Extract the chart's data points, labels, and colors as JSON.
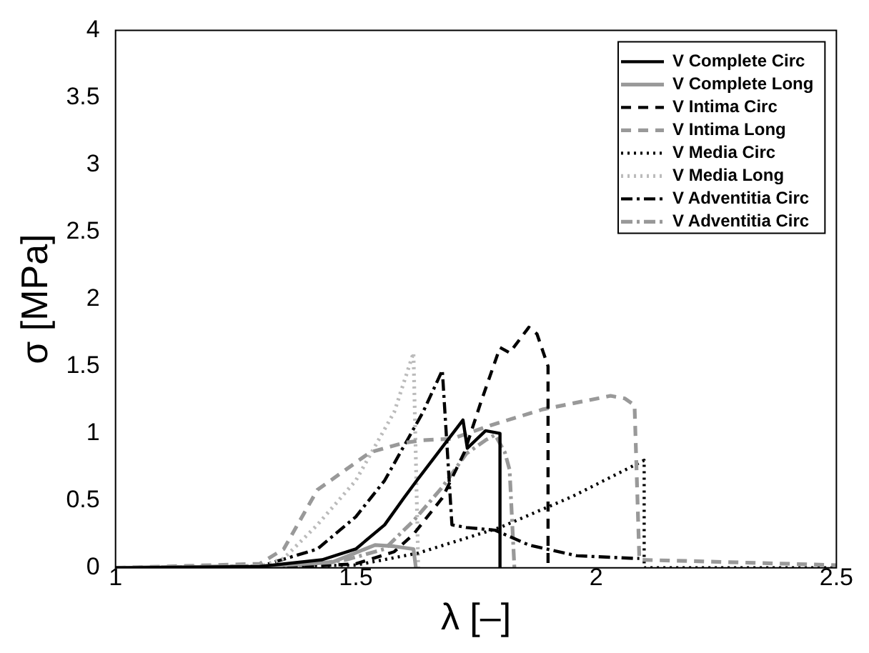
{
  "chart_data": {
    "type": "line",
    "xlabel": "λ [–]",
    "ylabel": "σ [MPa]",
    "xlim": [
      1,
      2.5
    ],
    "ylim": [
      0,
      4
    ],
    "xticks": [
      1,
      1.5,
      2,
      2.5
    ],
    "yticks": [
      0,
      0.5,
      1,
      1.5,
      2,
      2.5,
      3,
      3.5,
      4
    ],
    "grid": false,
    "legend": "top right",
    "marker": "none",
    "series": [
      {
        "name": "V Complete Circ",
        "color": "#000000",
        "line_style": "solid",
        "x": [
          1,
          1.3,
          1.43,
          1.5,
          1.56,
          1.6,
          1.627,
          1.723,
          1.732,
          1.77,
          1.786,
          1.8,
          1.8
        ],
        "values": [
          0,
          0.01,
          0.06,
          0.14,
          0.32,
          0.52,
          0.65,
          1.1,
          0.89,
          1.02,
          1.01,
          1.0,
          0
        ]
      },
      {
        "name": "V Complete Long",
        "color": "#999999",
        "line_style": "solid",
        "x": [
          1,
          1.3,
          1.45,
          1.54,
          1.58,
          1.62,
          1.625
        ],
        "values": [
          0,
          0.01,
          0.04,
          0.17,
          0.16,
          0.14,
          0
        ]
      },
      {
        "name": "V Intima Circ",
        "color": "#000000",
        "line_style": "dashed",
        "x": [
          1,
          1.4,
          1.5,
          1.58,
          1.62,
          1.68,
          1.726,
          1.76,
          1.8,
          1.82,
          1.86,
          1.877,
          1.9,
          1.9
        ],
        "values": [
          0,
          0.01,
          0.03,
          0.12,
          0.25,
          0.52,
          0.86,
          1.23,
          1.64,
          1.6,
          1.79,
          1.74,
          1.5,
          0
        ]
      },
      {
        "name": "V Intima Long",
        "color": "#999999",
        "line_style": "dashed",
        "x": [
          1,
          1.3,
          1.35,
          1.42,
          1.53,
          1.6,
          1.64,
          1.7,
          1.78,
          1.89,
          2.03,
          2.06,
          2.08,
          2.09,
          2.2,
          2.5
        ],
        "values": [
          0,
          0.03,
          0.14,
          0.58,
          0.86,
          0.93,
          0.95,
          0.96,
          1.06,
          1.18,
          1.28,
          1.26,
          1.21,
          0.06,
          0.05,
          0.02
        ]
      },
      {
        "name": "V Media Circ",
        "color": "#000000",
        "line_style": "dotted",
        "x": [
          1,
          1.5,
          1.63,
          1.8,
          1.95,
          2.1,
          2.1,
          2.5
        ],
        "values": [
          0,
          0.02,
          0.11,
          0.3,
          0.53,
          0.8,
          0,
          0
        ]
      },
      {
        "name": "V Media Long",
        "color": "#bbbbbb",
        "line_style": "dotted",
        "x": [
          1,
          1.3,
          1.35,
          1.42,
          1.5,
          1.58,
          1.62,
          1.63
        ],
        "values": [
          0,
          0.01,
          0.07,
          0.32,
          0.65,
          1.16,
          1.6,
          0
        ]
      },
      {
        "name": "V Adventitia Circ",
        "color": "#000000",
        "line_style": "dashdot",
        "x": [
          1,
          1.3,
          1.42,
          1.5,
          1.56,
          1.64,
          1.68,
          1.7,
          1.73,
          1.79,
          1.86,
          1.96,
          2.08,
          2.09
        ],
        "values": [
          0,
          0.01,
          0.14,
          0.38,
          0.65,
          1.16,
          1.47,
          0.32,
          0.3,
          0.28,
          0.17,
          0.09,
          0.07,
          0.07
        ]
      },
      {
        "name": "V Adventitia Circ",
        "color": "#999999",
        "line_style": "dashdot",
        "x": [
          1,
          1.4,
          1.48,
          1.56,
          1.62,
          1.68,
          1.73,
          1.77,
          1.79,
          1.81,
          1.82,
          1.83
        ],
        "values": [
          0,
          0.02,
          0.06,
          0.14,
          0.35,
          0.6,
          0.85,
          0.95,
          0.99,
          0.86,
          0.73,
          0
        ]
      }
    ]
  }
}
